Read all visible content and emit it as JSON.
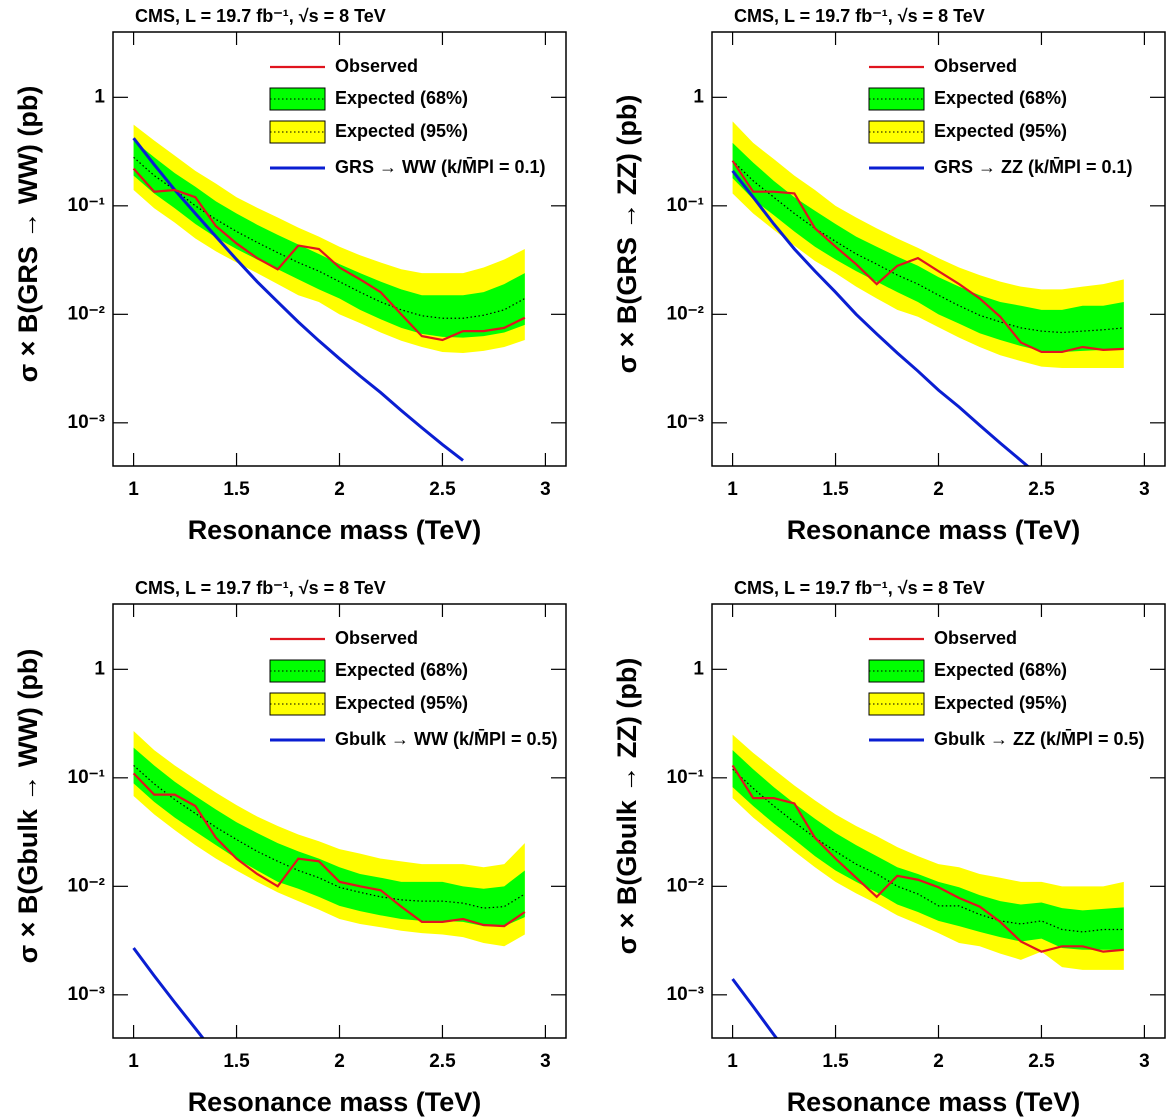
{
  "chart_data": [
    {
      "type": "line",
      "title": "CMS, L = 19.7 fb⁻¹, √s = 8 TeV",
      "xlabel": "Resonance mass (TeV)",
      "ylabel": "σ × B(GRS → WW) (pb)",
      "log_y": true,
      "xlim": [
        0.9,
        3.1
      ],
      "xticks": [
        1,
        1.5,
        2,
        2.5,
        3
      ],
      "ylim": [
        0.0004,
        4
      ],
      "yticks": [
        {
          "value": 0.001,
          "label": "10⁻³"
        },
        {
          "value": 0.01,
          "label": "10⁻²"
        },
        {
          "value": 0.1,
          "label": "10⁻¹"
        },
        1
      ],
      "x": [
        1.0,
        1.1,
        1.2,
        1.3,
        1.4,
        1.5,
        1.6,
        1.7,
        1.8,
        1.9,
        2.0,
        2.1,
        2.2,
        2.3,
        2.4,
        2.5,
        2.6,
        2.7,
        2.8,
        2.9
      ],
      "expected": [
        0.28,
        0.19,
        0.14,
        0.1,
        0.075,
        0.058,
        0.046,
        0.037,
        0.03,
        0.025,
        0.02,
        0.016,
        0.013,
        0.011,
        0.0097,
        0.0092,
        0.0092,
        0.0098,
        0.011,
        0.014
      ],
      "series": [
        {
          "name": "Observed",
          "color": "#e0141e",
          "values": [
            0.22,
            0.135,
            0.14,
            0.12,
            0.065,
            0.045,
            0.033,
            0.026,
            0.043,
            0.04,
            0.027,
            0.021,
            0.016,
            0.01,
            0.0063,
            0.0058,
            0.007,
            0.007,
            0.0075,
            0.0093
          ]
        },
        {
          "name": "Expected (68%)",
          "color": "#00ff00",
          "lower": [
            0.19,
            0.13,
            0.095,
            0.068,
            0.051,
            0.04,
            0.032,
            0.026,
            0.021,
            0.017,
            0.014,
            0.011,
            0.009,
            0.0075,
            0.0066,
            0.0062,
            0.0061,
            0.0063,
            0.0068,
            0.008
          ],
          "upper": [
            0.4,
            0.28,
            0.2,
            0.15,
            0.11,
            0.085,
            0.067,
            0.054,
            0.044,
            0.036,
            0.029,
            0.024,
            0.02,
            0.017,
            0.015,
            0.015,
            0.015,
            0.016,
            0.019,
            0.024
          ]
        },
        {
          "name": "Expected (95%)",
          "color": "#ffff00",
          "lower": [
            0.14,
            0.095,
            0.07,
            0.05,
            0.038,
            0.03,
            0.024,
            0.019,
            0.015,
            0.013,
            0.01,
            0.0083,
            0.0068,
            0.0057,
            0.005,
            0.0045,
            0.0044,
            0.0046,
            0.005,
            0.0058
          ],
          "upper": [
            0.56,
            0.4,
            0.29,
            0.21,
            0.16,
            0.12,
            0.096,
            0.078,
            0.063,
            0.052,
            0.042,
            0.035,
            0.03,
            0.026,
            0.024,
            0.024,
            0.024,
            0.027,
            0.032,
            0.04
          ]
        },
        {
          "name": "GRS → WW (k/M̄Pl = 0.1)",
          "color": "#0a1ed2",
          "values": [
            0.42,
            0.24,
            0.14,
            0.085,
            0.052,
            0.032,
            0.02,
            0.013,
            0.0085,
            0.0057,
            0.0039,
            0.0027,
            0.0019,
            0.0013,
            0.0009,
            0.00063,
            0.00045,
            null,
            null,
            null
          ]
        }
      ]
    },
    {
      "type": "line",
      "title": "CMS, L = 19.7 fb⁻¹, √s = 8 TeV",
      "xlabel": "Resonance mass (TeV)",
      "ylabel": "σ × B(GRS → ZZ) (pb)",
      "log_y": true,
      "xlim": [
        0.9,
        3.1
      ],
      "xticks": [
        1,
        1.5,
        2,
        2.5,
        3
      ],
      "ylim": [
        0.0004,
        4
      ],
      "yticks": [
        {
          "value": 0.001,
          "label": "10⁻³"
        },
        {
          "value": 0.01,
          "label": "10⁻²"
        },
        {
          "value": 0.1,
          "label": "10⁻¹"
        },
        1
      ],
      "x": [
        1.0,
        1.1,
        1.2,
        1.3,
        1.4,
        1.5,
        1.6,
        1.7,
        1.8,
        1.9,
        2.0,
        2.1,
        2.2,
        2.3,
        2.4,
        2.5,
        2.6,
        2.7,
        2.8,
        2.9
      ],
      "expected": [
        0.26,
        0.17,
        0.12,
        0.085,
        0.062,
        0.047,
        0.036,
        0.029,
        0.023,
        0.019,
        0.015,
        0.012,
        0.0098,
        0.0085,
        0.0075,
        0.007,
        0.0068,
        0.007,
        0.0072,
        0.0075
      ],
      "series": [
        {
          "name": "Observed",
          "color": "#e0141e",
          "values": [
            0.26,
            0.135,
            0.135,
            0.13,
            0.062,
            0.042,
            0.029,
            0.019,
            0.028,
            0.033,
            0.025,
            0.019,
            0.014,
            0.0095,
            0.0055,
            0.0045,
            0.0045,
            0.005,
            0.0047,
            0.0048
          ]
        },
        {
          "name": "Expected (68%)",
          "color": "#00ff00",
          "lower": [
            0.18,
            0.115,
            0.082,
            0.058,
            0.042,
            0.032,
            0.025,
            0.02,
            0.016,
            0.013,
            0.01,
            0.0082,
            0.0067,
            0.0058,
            0.0051,
            0.0046,
            0.0045,
            0.0046,
            0.0047,
            0.0048
          ],
          "upper": [
            0.38,
            0.25,
            0.17,
            0.12,
            0.09,
            0.068,
            0.052,
            0.042,
            0.034,
            0.028,
            0.022,
            0.018,
            0.015,
            0.013,
            0.012,
            0.011,
            0.011,
            0.012,
            0.012,
            0.013
          ]
        },
        {
          "name": "Expected (95%)",
          "color": "#ffff00",
          "lower": [
            0.13,
            0.085,
            0.06,
            0.043,
            0.031,
            0.024,
            0.018,
            0.014,
            0.011,
            0.0095,
            0.0076,
            0.0061,
            0.005,
            0.0042,
            0.0037,
            0.0033,
            0.0032,
            0.0032,
            0.0032,
            0.0032
          ],
          "upper": [
            0.6,
            0.38,
            0.27,
            0.19,
            0.14,
            0.1,
            0.078,
            0.062,
            0.05,
            0.041,
            0.033,
            0.027,
            0.023,
            0.02,
            0.018,
            0.017,
            0.017,
            0.018,
            0.019,
            0.021
          ]
        },
        {
          "name": "GRS → ZZ (k/M̄Pl = 0.1)",
          "color": "#0a1ed2",
          "values": [
            0.21,
            0.12,
            0.068,
            0.04,
            0.025,
            0.016,
            0.01,
            0.0066,
            0.0044,
            0.003,
            0.002,
            0.0014,
            0.00095,
            0.00065,
            0.00045,
            0.00031,
            null,
            null,
            null,
            null
          ]
        }
      ]
    },
    {
      "type": "line",
      "title": "CMS, L = 19.7 fb⁻¹, √s = 8 TeV",
      "xlabel": "Resonance mass (TeV)",
      "ylabel": "σ × B(Gbulk → WW) (pb)",
      "log_y": true,
      "xlim": [
        0.9,
        3.1
      ],
      "xticks": [
        1,
        1.5,
        2,
        2.5,
        3
      ],
      "ylim": [
        0.0004,
        4
      ],
      "yticks": [
        {
          "value": 0.001,
          "label": "10⁻³"
        },
        {
          "value": 0.01,
          "label": "10⁻²"
        },
        {
          "value": 0.1,
          "label": "10⁻¹"
        },
        1
      ],
      "x": [
        1.0,
        1.1,
        1.2,
        1.3,
        1.4,
        1.5,
        1.6,
        1.7,
        1.8,
        1.9,
        2.0,
        2.1,
        2.2,
        2.3,
        2.4,
        2.5,
        2.6,
        2.7,
        2.8,
        2.9
      ],
      "expected": [
        0.13,
        0.088,
        0.063,
        0.047,
        0.035,
        0.027,
        0.021,
        0.017,
        0.014,
        0.012,
        0.0098,
        0.0088,
        0.008,
        0.0075,
        0.0073,
        0.0073,
        0.007,
        0.0063,
        0.0065,
        0.0085
      ],
      "series": [
        {
          "name": "Observed",
          "color": "#e0141e",
          "values": [
            0.11,
            0.07,
            0.07,
            0.055,
            0.028,
            0.018,
            0.013,
            0.01,
            0.018,
            0.017,
            0.011,
            0.01,
            0.0092,
            0.0065,
            0.0047,
            0.0047,
            0.005,
            0.0044,
            0.0043,
            0.0058
          ]
        },
        {
          "name": "Expected (68%)",
          "color": "#00ff00",
          "lower": [
            0.089,
            0.06,
            0.043,
            0.032,
            0.024,
            0.018,
            0.014,
            0.011,
            0.0095,
            0.008,
            0.0066,
            0.0059,
            0.0054,
            0.005,
            0.0048,
            0.0048,
            0.0047,
            0.0043,
            0.0043,
            0.0052
          ],
          "upper": [
            0.19,
            0.13,
            0.092,
            0.068,
            0.051,
            0.039,
            0.031,
            0.025,
            0.021,
            0.018,
            0.015,
            0.013,
            0.012,
            0.011,
            0.011,
            0.011,
            0.01,
            0.0095,
            0.01,
            0.014
          ]
        },
        {
          "name": "Expected (95%)",
          "color": "#ffff00",
          "lower": [
            0.068,
            0.046,
            0.033,
            0.024,
            0.018,
            0.014,
            0.011,
            0.0088,
            0.0073,
            0.0061,
            0.005,
            0.0045,
            0.0042,
            0.0039,
            0.0037,
            0.0036,
            0.0034,
            0.003,
            0.0028,
            0.0036
          ],
          "upper": [
            0.27,
            0.18,
            0.13,
            0.097,
            0.073,
            0.056,
            0.044,
            0.036,
            0.03,
            0.026,
            0.022,
            0.02,
            0.018,
            0.017,
            0.016,
            0.016,
            0.016,
            0.015,
            0.016,
            0.025
          ]
        },
        {
          "name": "Gbulk → WW (k/M̄Pl = 0.5)",
          "color": "#0a1ed2",
          "values": [
            0.0027,
            0.0015,
            0.00085,
            0.00049,
            0.00028,
            null,
            null,
            null,
            null,
            null,
            null,
            null,
            null,
            null,
            null,
            null,
            null,
            null,
            null,
            null
          ]
        }
      ]
    },
    {
      "type": "line",
      "title": "CMS, L = 19.7 fb⁻¹, √s = 8 TeV",
      "xlabel": "Resonance mass (TeV)",
      "ylabel": "σ × B(Gbulk → ZZ) (pb)",
      "log_y": true,
      "xlim": [
        0.9,
        3.1
      ],
      "xticks": [
        1,
        1.5,
        2,
        2.5,
        3
      ],
      "ylim": [
        0.0004,
        4
      ],
      "yticks": [
        {
          "value": 0.001,
          "label": "10⁻³"
        },
        {
          "value": 0.01,
          "label": "10⁻²"
        },
        {
          "value": 0.1,
          "label": "10⁻¹"
        },
        1
      ],
      "x": [
        1.0,
        1.1,
        1.2,
        1.3,
        1.4,
        1.5,
        1.6,
        1.7,
        1.8,
        1.9,
        2.0,
        2.1,
        2.2,
        2.3,
        2.4,
        2.5,
        2.6,
        2.7,
        2.8,
        2.9
      ],
      "expected": [
        0.12,
        0.08,
        0.055,
        0.039,
        0.028,
        0.021,
        0.016,
        0.013,
        0.01,
        0.0085,
        0.0066,
        0.0066,
        0.0055,
        0.0048,
        0.0045,
        0.0048,
        0.004,
        0.0038,
        0.004,
        0.004
      ],
      "series": [
        {
          "name": "Observed",
          "color": "#e0141e",
          "values": [
            0.13,
            0.065,
            0.065,
            0.058,
            0.028,
            0.018,
            0.012,
            0.008,
            0.0125,
            0.0115,
            0.0098,
            0.0078,
            0.0065,
            0.0047,
            0.0031,
            0.0025,
            0.0028,
            0.0028,
            0.0025,
            0.0026
          ]
        },
        {
          "name": "Expected (68%)",
          "color": "#00ff00",
          "lower": [
            0.082,
            0.055,
            0.038,
            0.027,
            0.019,
            0.014,
            0.011,
            0.0088,
            0.0068,
            0.0058,
            0.0048,
            0.0043,
            0.0038,
            0.0034,
            0.0031,
            0.0033,
            0.0027,
            0.0026,
            0.0026,
            0.0026
          ],
          "upper": [
            0.18,
            0.12,
            0.082,
            0.058,
            0.042,
            0.031,
            0.024,
            0.019,
            0.015,
            0.013,
            0.011,
            0.0098,
            0.0083,
            0.0073,
            0.0068,
            0.0071,
            0.0063,
            0.006,
            0.0062,
            0.0064
          ]
        },
        {
          "name": "Expected (95%)",
          "color": "#ffff00",
          "lower": [
            0.065,
            0.043,
            0.03,
            0.021,
            0.015,
            0.011,
            0.0086,
            0.0069,
            0.0054,
            0.0045,
            0.0037,
            0.003,
            0.0028,
            0.0024,
            0.0021,
            0.0025,
            0.0018,
            0.0017,
            0.0017,
            0.0017
          ],
          "upper": [
            0.25,
            0.17,
            0.12,
            0.085,
            0.062,
            0.046,
            0.036,
            0.029,
            0.023,
            0.019,
            0.016,
            0.015,
            0.013,
            0.012,
            0.011,
            0.011,
            0.01,
            0.01,
            0.01,
            0.011
          ]
        },
        {
          "name": "Gbulk → ZZ (k/M̄Pl = 0.5)",
          "color": "#0a1ed2",
          "values": [
            0.0014,
            0.00078,
            0.00043,
            0.00024,
            null,
            null,
            null,
            null,
            null,
            null,
            null,
            null,
            null,
            null,
            null,
            null,
            null,
            null,
            null,
            null
          ]
        }
      ]
    }
  ]
}
